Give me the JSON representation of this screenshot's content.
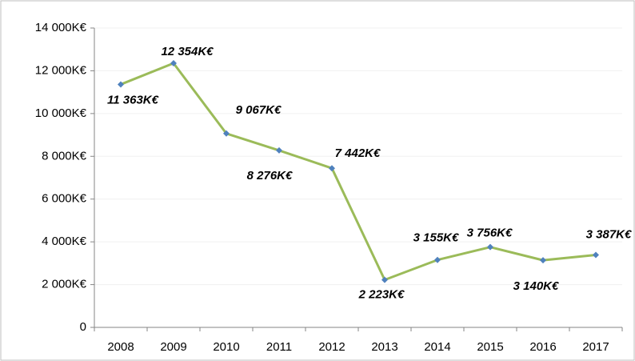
{
  "chart_data": {
    "type": "line",
    "categories": [
      "2008",
      "2009",
      "2010",
      "2011",
      "2012",
      "2013",
      "2014",
      "2015",
      "2016",
      "2017"
    ],
    "values": [
      11363,
      12354,
      9067,
      8276,
      7442,
      2223,
      3155,
      3756,
      3140,
      3387
    ],
    "value_labels": [
      "11 363K€",
      "12 354K€",
      "9 067K€",
      "8 276K€",
      "7 442K€",
      "2 223K€",
      "3 155K€",
      "3 756K€",
      "3 140K€",
      "3 387K€"
    ],
    "color": "#9bbb59",
    "marker_color": "#4f81bd",
    "ylim": [
      0,
      14000
    ],
    "yticks": [
      0,
      {
        "value": 2000,
        "label": "2 000K€"
      },
      {
        "value": 4000,
        "label": "4 000K€"
      },
      {
        "value": 6000,
        "label": "6 000K€"
      },
      {
        "value": 8000,
        "label": "8 000K€"
      },
      {
        "value": 10000,
        "label": "10 000K€"
      },
      {
        "value": 12000,
        "label": "12 000K€"
      },
      {
        "value": 14000,
        "label": "14 000K€"
      }
    ],
    "grid": true
  }
}
